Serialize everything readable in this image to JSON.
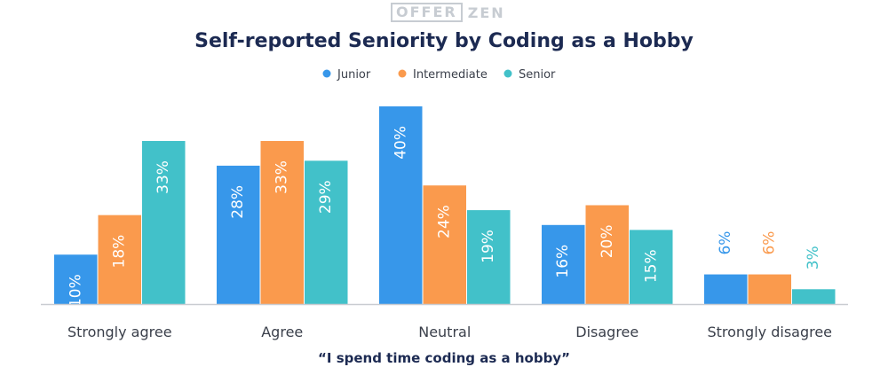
{
  "logo": {
    "left": "OFFER",
    "right": "ZEN"
  },
  "chart_data": {
    "type": "bar",
    "title": "Self-reported Seniority by Coding as a Hobby",
    "xlabel": "“I spend time coding as a hobby”",
    "ylabel": "",
    "categories": [
      "Strongly agree",
      "Agree",
      "Neutral",
      "Disagree",
      "Strongly disagree"
    ],
    "series": [
      {
        "name": "Junior",
        "color": "#3797ea",
        "values": [
          10,
          28,
          40,
          16,
          6
        ]
      },
      {
        "name": "Intermediate",
        "color": "#fa9a4d",
        "values": [
          18,
          33,
          24,
          20,
          6
        ]
      },
      {
        "name": "Senior",
        "color": "#42c1c9",
        "values": [
          33,
          29,
          19,
          15,
          3
        ]
      }
    ],
    "value_suffix": "%",
    "ylim": [
      0,
      42
    ],
    "grid": false,
    "legend_position": "top-center"
  }
}
